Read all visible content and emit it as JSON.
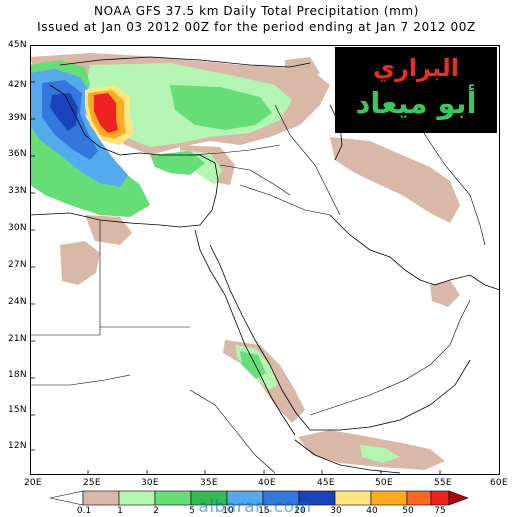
{
  "title": {
    "line1": "NOAA GFS 37.5 km Daily Total Precipitation (mm)",
    "line2": "Issued at Jan 03 2012 00Z for the period ending at Jan 7 2012 00Z"
  },
  "axes": {
    "latitude_labels": [
      "45N",
      "42N",
      "39N",
      "36N",
      "33N",
      "30N",
      "27N",
      "24N",
      "21N",
      "18N",
      "15N",
      "12N"
    ],
    "longitude_labels": [
      "20E",
      "25E",
      "30E",
      "35E",
      "40E",
      "45E",
      "50E",
      "55E",
      "60E"
    ]
  },
  "watermark": {
    "line1": "البراري",
    "line2": "أبو ميعاد"
  },
  "site_watermark": "albarari.com",
  "legend": {
    "labels": [
      "0.1",
      "1",
      "2",
      "5",
      "10",
      "15",
      "20",
      "30",
      "40",
      "50",
      "75"
    ],
    "colors": [
      "#ffffff",
      "#d9b8a8",
      "#b4f5b4",
      "#66dd77",
      "#33bb55",
      "#55aaee",
      "#3377dd",
      "#1a44bb",
      "#ffe680",
      "#ffaa22",
      "#ff6622",
      "#ee2222",
      "#aa0a0a"
    ]
  },
  "map": {
    "colors": {
      "ocean": "#ffffff",
      "land": "#ffffff",
      "boundary": "#000000",
      "light_rain": "#d9b8a8",
      "green_light": "#b4f5b4",
      "green": "#66dd77",
      "blue_light": "#55aaee",
      "blue": "#3377dd",
      "blue_dark": "#1a44bb",
      "yellow": "#ffe680",
      "orange": "#ffaa22",
      "red": "#ee2222"
    }
  }
}
